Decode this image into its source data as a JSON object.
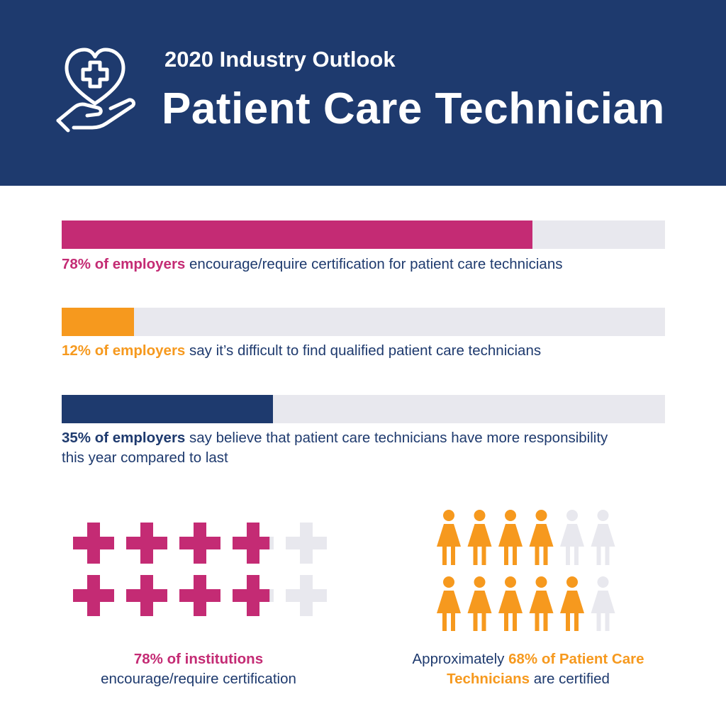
{
  "header": {
    "subtitle": "2020 Industry Outlook",
    "title": "Patient Care Technician",
    "icon": "heart-hand-cross-icon"
  },
  "colors": {
    "navy": "#1e3a6e",
    "magenta": "#c42b74",
    "orange": "#f6991e",
    "track": "#e8e8ee",
    "white": "#ffffff"
  },
  "stats": [
    {
      "percent": 78,
      "color": "#c42b74",
      "highlight": "78% of employers",
      "text": " encourage/require certification for patient care technicians"
    },
    {
      "percent": 12,
      "color": "#f6991e",
      "highlight": "12% of employers",
      "text": " say it’s difficult to find qualified patient care technicians"
    },
    {
      "percent": 35,
      "color": "#1e3a6e",
      "highlight": "35% of employers",
      "text": " say believe that patient care technicians have more responsibility this year compared to last"
    }
  ],
  "chart_data": [
    {
      "type": "bar",
      "orientation": "horizontal",
      "values": [
        78,
        12,
        35
      ],
      "max": 100,
      "labels": [
        "78% of employers encourage/require certification for patient care technicians",
        "12% of employers say it’s difficult to find qualified patient care technicians",
        "35% of employers say believe that patient care technicians have more responsibility this year compared to last"
      ]
    },
    {
      "type": "pictograph",
      "icon": "cross-icon",
      "total": 10,
      "value_percent": 78,
      "color": "#c42b74",
      "caption_highlight": "78% of institutions",
      "caption_text": "encourage/require certification"
    },
    {
      "type": "pictograph",
      "icon": "person-icon",
      "total": 12,
      "value_percent": 68,
      "color": "#f6991e",
      "caption_prefix": "Approximately ",
      "caption_highlight": "68% of Patient Care Technicians",
      "caption_text": " are certified"
    }
  ]
}
